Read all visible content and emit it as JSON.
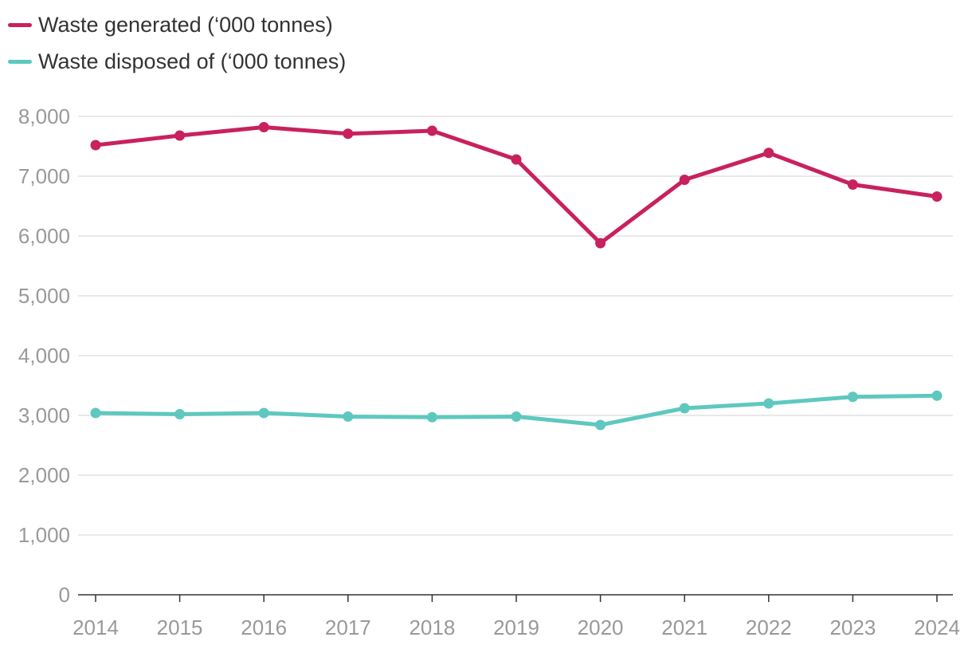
{
  "chart_data": {
    "type": "line",
    "title": "",
    "xlabel": "",
    "ylabel": "",
    "x": [
      "2014",
      "2015",
      "2016",
      "2017",
      "2018",
      "2019",
      "2020",
      "2021",
      "2022",
      "2023",
      "2024"
    ],
    "ylim": [
      0,
      8000
    ],
    "yticks": [
      0,
      1000,
      2000,
      3000,
      4000,
      5000,
      6000,
      7000,
      8000
    ],
    "ytick_labels": [
      "0",
      "1,000",
      "2,000",
      "3,000",
      "4,000",
      "5,000",
      "6,000",
      "7,000",
      "8,000"
    ],
    "grid": true,
    "legend_position": "top-left",
    "series": [
      {
        "name": "Waste generated (‘000 tonnes)",
        "color": "#c8215e",
        "values": [
          7520,
          7680,
          7820,
          7710,
          7760,
          7280,
          5880,
          6940,
          7390,
          6860,
          6660
        ]
      },
      {
        "name": "Waste disposed of (‘000 tonnes)",
        "color": "#5ec8bf",
        "values": [
          3040,
          3020,
          3040,
          2980,
          2970,
          2980,
          2840,
          3120,
          3200,
          3310,
          3330
        ]
      }
    ]
  }
}
